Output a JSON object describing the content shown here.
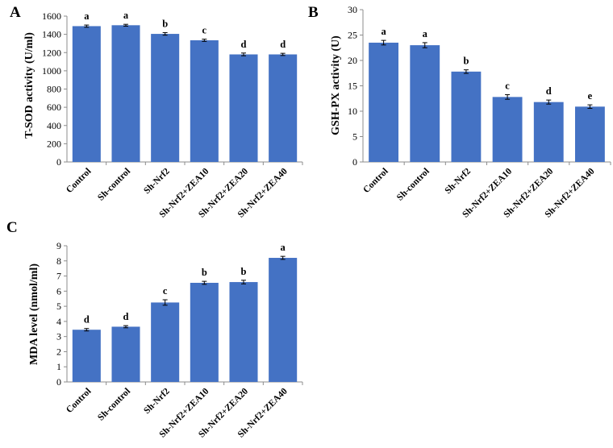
{
  "figure": {
    "panels": [
      "A",
      "B",
      "C"
    ]
  },
  "chart_data": [
    {
      "type": "bar",
      "panel": "A",
      "categories": [
        "Control",
        "Sh-control",
        "Sh-Nrf2",
        "Sh-Nrf2+ZEA10",
        "Sh-Nrf2+ZEA20",
        "Sh-Nrf2+ZEA40"
      ],
      "values": [
        1490,
        1500,
        1405,
        1335,
        1180,
        1180
      ],
      "errors": [
        12,
        10,
        14,
        12,
        15,
        12
      ],
      "significance": [
        "a",
        "a",
        "b",
        "c",
        "d",
        "d"
      ],
      "xlabel": "",
      "ylabel": "T-SOD activity (U/ml)",
      "ylim": [
        0,
        1600
      ],
      "yticks": [
        0,
        200,
        400,
        600,
        800,
        1000,
        1200,
        1400,
        1600
      ],
      "color": "#4472C4",
      "grid": false
    },
    {
      "type": "bar",
      "panel": "B",
      "categories": [
        "Control",
        "Sh-control",
        "Sh-Nrf2",
        "Sh-Nrf2+ZEA10",
        "Sh-Nrf2+ZEA20",
        "Sh-Nrf2+ZEA40"
      ],
      "values": [
        23.5,
        23.0,
        17.8,
        12.8,
        11.8,
        10.9
      ],
      "errors": [
        0.45,
        0.5,
        0.35,
        0.45,
        0.4,
        0.35
      ],
      "significance": [
        "a",
        "a",
        "b",
        "c",
        "d",
        "e"
      ],
      "xlabel": "",
      "ylabel": "GSH-PX activity (U)",
      "ylim": [
        0,
        30
      ],
      "yticks": [
        0,
        5,
        10,
        15,
        20,
        25,
        30
      ],
      "color": "#4472C4",
      "grid": false
    },
    {
      "type": "bar",
      "panel": "C",
      "categories": [
        "Control",
        "Sh-control",
        "Sh-Nrf2",
        "Sh-Nrf2+ZEA10",
        "Sh-Nrf2+ZEA20",
        "Sh-Nrf2+ZEA40"
      ],
      "values": [
        3.45,
        3.65,
        5.25,
        6.55,
        6.6,
        8.2
      ],
      "errors": [
        0.08,
        0.07,
        0.18,
        0.1,
        0.12,
        0.1
      ],
      "significance": [
        "d",
        "d",
        "c",
        "b",
        "b",
        "a"
      ],
      "xlabel": "",
      "ylabel": "MDA level (nmol/ml)",
      "ylim": [
        0,
        9
      ],
      "yticks": [
        0,
        1,
        2,
        3,
        4,
        5,
        6,
        7,
        8,
        9
      ],
      "color": "#4472C4",
      "grid": false
    }
  ]
}
